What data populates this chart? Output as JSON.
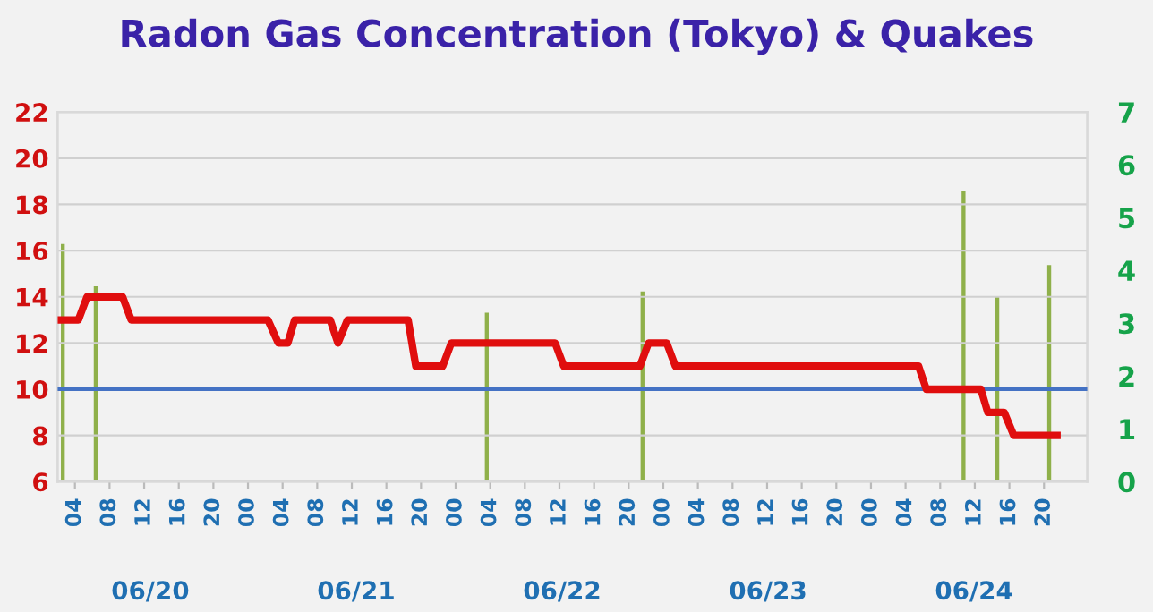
{
  "chart_data": {
    "type": "line",
    "title": "Radon Gas Concentration (Tokyo) & Quakes",
    "series": [
      {
        "color": "#e00e0e",
        "x": [
          2.4,
          4.4,
          5.4,
          9.5,
          10.5,
          26.3,
          27.5,
          28.6,
          29.4,
          33.5,
          34.4,
          35.5,
          42.5,
          43.4,
          46.5,
          47.5,
          59.5,
          60.5,
          69.3,
          70.3,
          72.4,
          73.4,
          101.5,
          102.4,
          108.7,
          109.5,
          111.4,
          112.5,
          117.5
        ],
        "values": [
          13,
          13,
          14,
          14,
          13,
          13,
          12,
          12,
          13,
          13,
          12,
          13,
          13,
          11,
          11,
          12,
          12,
          11,
          11,
          12,
          12,
          11,
          11,
          10,
          10,
          9,
          9,
          8,
          8
        ]
      },
      {
        "type": "bar",
        "axis": "y2",
        "color": "#8fb04a",
        "x": [
          2.6,
          6.4,
          51.6,
          69.6,
          106.7,
          110.6,
          116.6
        ],
        "values": [
          4.5,
          3.7,
          3.2,
          3.6,
          5.5,
          3.5,
          4.1
        ]
      }
    ],
    "xlim": [
      2.0,
      121
    ],
    "xticks": [
      {
        "value": 4,
        "label": "04"
      },
      {
        "value": 8,
        "label": "08"
      },
      {
        "value": 12,
        "label": "12"
      },
      {
        "value": 16,
        "label": "16"
      },
      {
        "value": 20,
        "label": "20"
      },
      {
        "value": 24,
        "label": "00"
      },
      {
        "value": 28,
        "label": "04"
      },
      {
        "value": 32,
        "label": "08"
      },
      {
        "value": 36,
        "label": "12"
      },
      {
        "value": 40,
        "label": "16"
      },
      {
        "value": 44,
        "label": "20"
      },
      {
        "value": 48,
        "label": "00"
      },
      {
        "value": 52,
        "label": "04"
      },
      {
        "value": 56,
        "label": "08"
      },
      {
        "value": 60,
        "label": "12"
      },
      {
        "value": 64,
        "label": "16"
      },
      {
        "value": 68,
        "label": "20"
      },
      {
        "value": 72,
        "label": "00"
      },
      {
        "value": 76,
        "label": "04"
      },
      {
        "value": 80,
        "label": "08"
      },
      {
        "value": 84,
        "label": "12"
      },
      {
        "value": 88,
        "label": "16"
      },
      {
        "value": 92,
        "label": "20"
      },
      {
        "value": 96,
        "label": "00"
      },
      {
        "value": 100,
        "label": "04"
      },
      {
        "value": 104,
        "label": "08"
      },
      {
        "value": 108,
        "label": "12"
      },
      {
        "value": 112,
        "label": "16"
      },
      {
        "value": 116,
        "label": "20"
      }
    ],
    "annotations": [
      "06/20",
      "06/21",
      "06/22",
      "06/23",
      "06/24"
    ],
    "ylim": [
      6,
      22
    ],
    "yticks": [
      6,
      8,
      10,
      12,
      14,
      16,
      18,
      20,
      22
    ],
    "y2lim": [
      0,
      7
    ],
    "y2ticks": [
      0,
      1,
      2,
      3,
      4,
      5,
      6,
      7
    ],
    "ref_lines": [
      {
        "axis": "y",
        "value": 10,
        "color": "#4472c4"
      }
    ],
    "grid": "y"
  }
}
